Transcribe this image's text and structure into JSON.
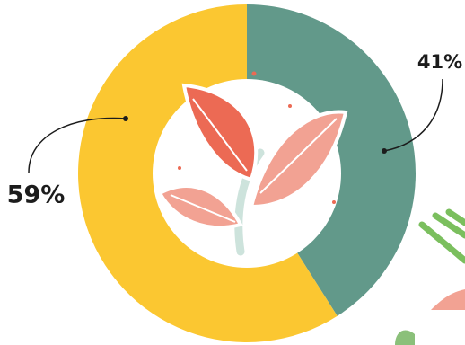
{
  "chart_data": {
    "type": "pie",
    "hole": true,
    "values": [
      41,
      59
    ],
    "value_labels": [
      "41%",
      "59%"
    ],
    "colors": [
      "#62998a",
      "#fbc731"
    ]
  }
}
